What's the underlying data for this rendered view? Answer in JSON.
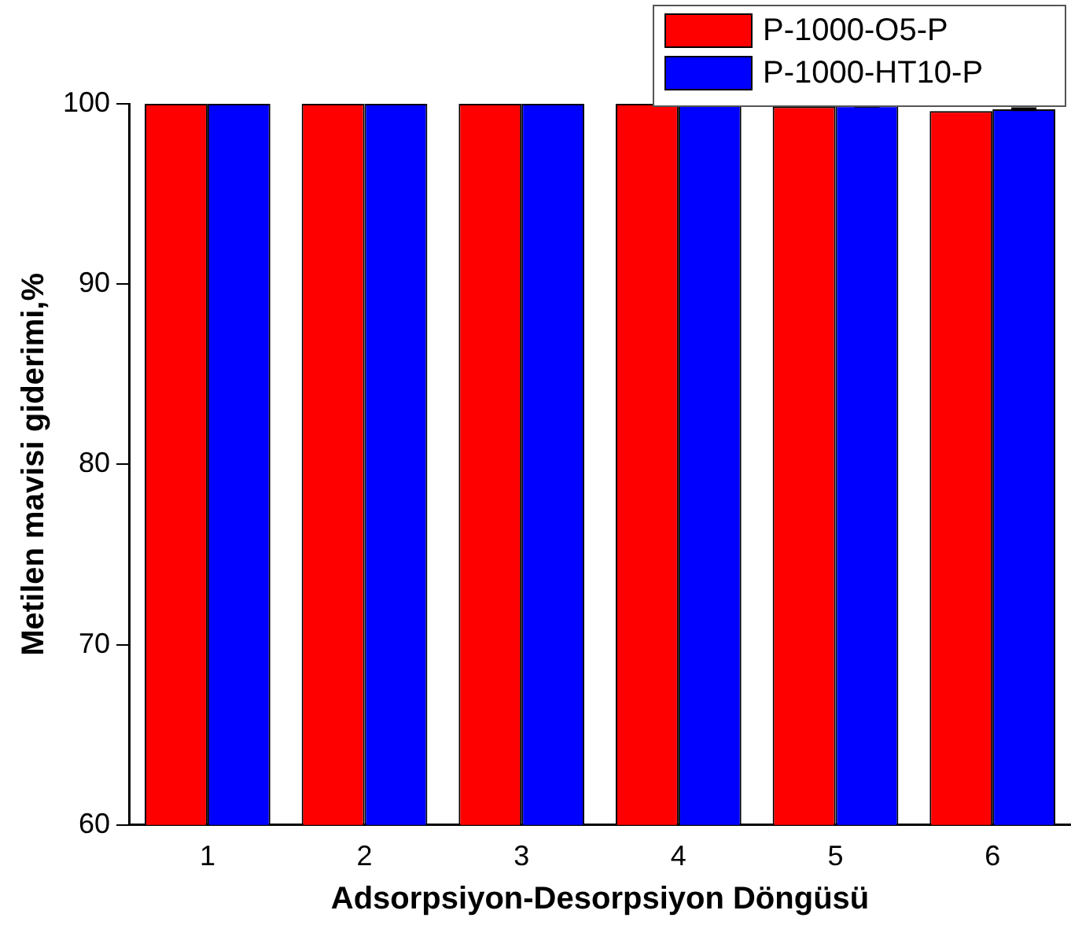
{
  "chart_data": {
    "type": "bar",
    "xlabel": "Adsorpsiyon-Desorpsiyon Döngüsü",
    "ylabel": "Metilen mavisi giderimi,%",
    "categories": [
      "1",
      "2",
      "3",
      "4",
      "5",
      "6"
    ],
    "series": [
      {
        "name": "P-1000-O5-P",
        "color": "#ff0000",
        "values": [
          100,
          100,
          100,
          100,
          99.85,
          99.6
        ]
      },
      {
        "name": "P-1000-HT10-P",
        "color": "#0000ff",
        "values": [
          100,
          100,
          100,
          100,
          99.9,
          99.7
        ],
        "errors": [
          null,
          null,
          null,
          null,
          0.05,
          0.05
        ]
      }
    ],
    "ylim": [
      60,
      100
    ],
    "yticks": [
      60,
      70,
      80,
      90,
      100
    ],
    "grid": false,
    "legend": "top right"
  }
}
